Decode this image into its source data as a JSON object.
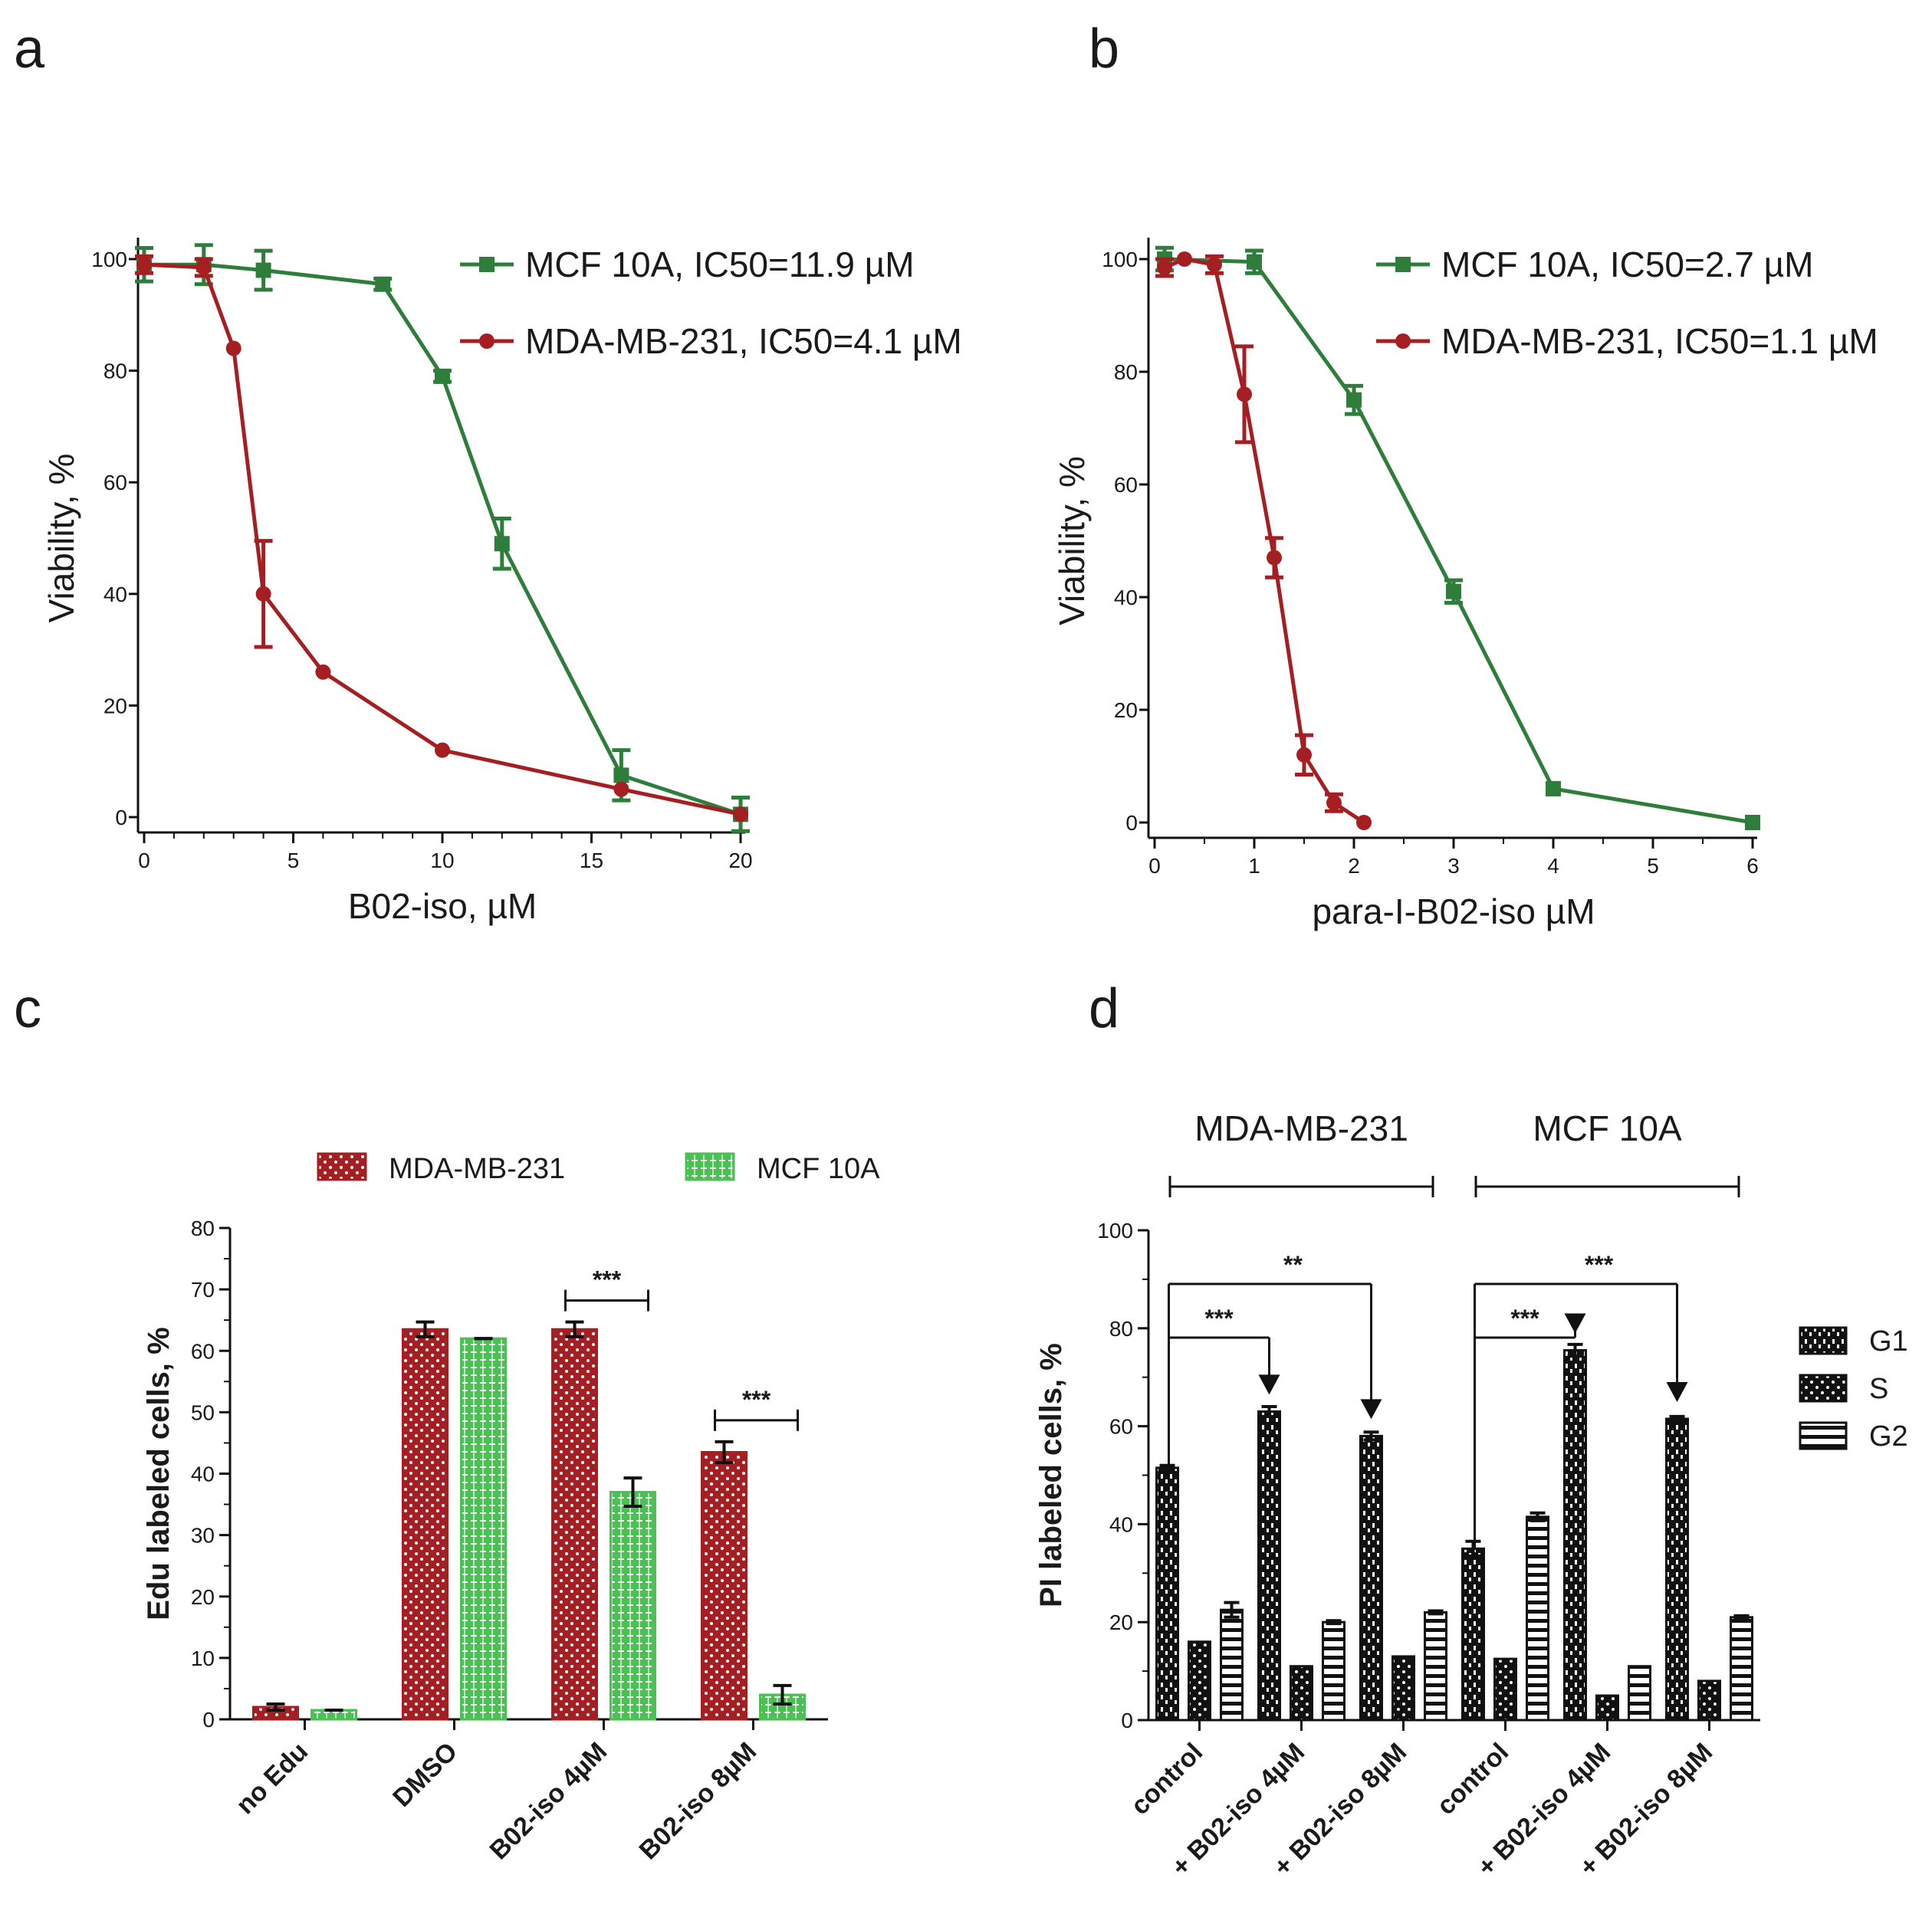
{
  "figure": {
    "panels": [
      "a",
      "b",
      "c",
      "d"
    ],
    "colors": {
      "mcf10a": "#2e7d3b",
      "mdamb231": "#a41e22",
      "mcf10a_bar": "#4cbf55",
      "black": "#111111"
    }
  },
  "chart_data": [
    {
      "panel": "a",
      "type": "line",
      "xlabel": "B02-iso, µM",
      "ylabel": "Viability, %",
      "xlim": [
        0,
        20
      ],
      "ylim": [
        0,
        100
      ],
      "xticks": [
        "0",
        "5",
        "10",
        "15",
        "20"
      ],
      "yticks": [
        "0",
        "20",
        "40",
        "60",
        "80",
        "100"
      ],
      "legend_position": "top-right",
      "series": [
        {
          "name": "MCF 10A, IC50=11.9 µM",
          "color": "#2e7d3b",
          "marker": "square",
          "x": [
            0,
            2,
            4,
            8,
            10,
            12,
            16,
            20
          ],
          "y": [
            99,
            99,
            98,
            95.5,
            79,
            49,
            7.5,
            0.5
          ],
          "err": [
            3,
            3.5,
            3.5,
            1,
            1,
            4.5,
            4.5,
            3
          ]
        },
        {
          "name": "MDA-MB-231, IC50=4.1 µM",
          "color": "#a41e22",
          "marker": "circle",
          "x": [
            0,
            2,
            3,
            4,
            6,
            10,
            16,
            20
          ],
          "y": [
            99,
            98.5,
            84,
            40,
            26,
            12,
            5,
            0.5
          ],
          "err": [
            1.5,
            1.5,
            0,
            9.5,
            0,
            0,
            0,
            0
          ]
        }
      ]
    },
    {
      "panel": "b",
      "type": "line",
      "xlabel": "para-I-B02-iso µM",
      "ylabel": "Viability, %",
      "xlim": [
        0,
        6
      ],
      "ylim": [
        0,
        100
      ],
      "xticks": [
        "0",
        "1",
        "2",
        "3",
        "4",
        "5",
        "6"
      ],
      "yticks": [
        "0",
        "20",
        "40",
        "60",
        "80",
        "100"
      ],
      "legend_position": "top-right",
      "series": [
        {
          "name": "MCF 10A, IC50=2.7 µM",
          "color": "#2e7d3b",
          "marker": "square",
          "x": [
            0.1,
            1,
            2,
            3,
            4,
            6
          ],
          "y": [
            100,
            99.5,
            75,
            41,
            6,
            0
          ],
          "err": [
            2,
            2,
            2.5,
            2,
            0,
            0
          ]
        },
        {
          "name": "MDA-MB-231, IC50=1.1 µM",
          "color": "#a41e22",
          "marker": "circle",
          "x": [
            0.1,
            0.3,
            0.6,
            0.9,
            1.2,
            1.5,
            1.8,
            2.1
          ],
          "y": [
            98.5,
            100,
            99,
            76,
            47,
            12,
            3.5,
            0
          ],
          "err": [
            1.5,
            0,
            1.5,
            8.5,
            3.5,
            3.5,
            1.5,
            0
          ]
        }
      ]
    },
    {
      "panel": "c",
      "type": "bar",
      "ylabel": "Edu labeled cells, %",
      "ylim": [
        0,
        80
      ],
      "yticks": [
        "0",
        "10",
        "20",
        "30",
        "40",
        "50",
        "60",
        "70",
        "80"
      ],
      "categories": [
        "no Edu",
        "DMSO",
        "B02-iso 4µM",
        "B02-iso 8µM"
      ],
      "legend_position": "top",
      "series": [
        {
          "name": "MDA-MB-231",
          "color": "#a41e22",
          "pattern": "dots",
          "values": [
            2,
            63.5,
            63.5,
            43.5
          ],
          "err": [
            0.5,
            1.2,
            1.2,
            1.7
          ]
        },
        {
          "name": "MCF 10A",
          "color": "#4cbf55",
          "pattern": "grid",
          "values": [
            1.5,
            62,
            37,
            4
          ],
          "err": [
            0,
            0,
            2.3,
            1.5
          ]
        }
      ],
      "significance": [
        {
          "label": "***",
          "category": "B02-iso 4µM"
        },
        {
          "label": "***",
          "category": "B02-iso 8µM"
        }
      ]
    },
    {
      "panel": "d",
      "type": "bar",
      "ylabel": "PI labeled cells, %",
      "ylim": [
        0,
        100
      ],
      "yticks": [
        "0",
        "20",
        "40",
        "60",
        "80",
        "100"
      ],
      "groups": [
        "MDA-MB-231",
        "MCF 10A"
      ],
      "categories": [
        "control",
        "+ B02-iso 4µM",
        "+ B02-iso 8µM",
        "control",
        "+ B02-iso 4µM",
        "+ B02-iso 8µM"
      ],
      "legend_position": "right",
      "series": [
        {
          "name": "G1",
          "pattern": "dashes",
          "values": [
            51.5,
            63,
            58,
            35,
            75.5,
            61.5
          ],
          "err": [
            0.5,
            1,
            0.8,
            1.5,
            1.2,
            0.5
          ]
        },
        {
          "name": "S",
          "pattern": "dots",
          "values": [
            16,
            11,
            13,
            12.5,
            5,
            8
          ],
          "err": [
            0,
            0,
            0,
            0,
            0,
            0
          ]
        },
        {
          "name": "G2",
          "pattern": "stripes",
          "values": [
            22.5,
            20,
            22,
            41.5,
            11,
            21
          ],
          "err": [
            1.5,
            0.3,
            0.3,
            0.8,
            0,
            0.3
          ]
        }
      ],
      "significance": [
        {
          "label": "***",
          "from": 0,
          "to": 1
        },
        {
          "label": "**",
          "from": 0,
          "to": 2
        },
        {
          "label": "***",
          "from": 3,
          "to": 4
        },
        {
          "label": "***",
          "from": 3,
          "to": 5
        }
      ]
    }
  ]
}
